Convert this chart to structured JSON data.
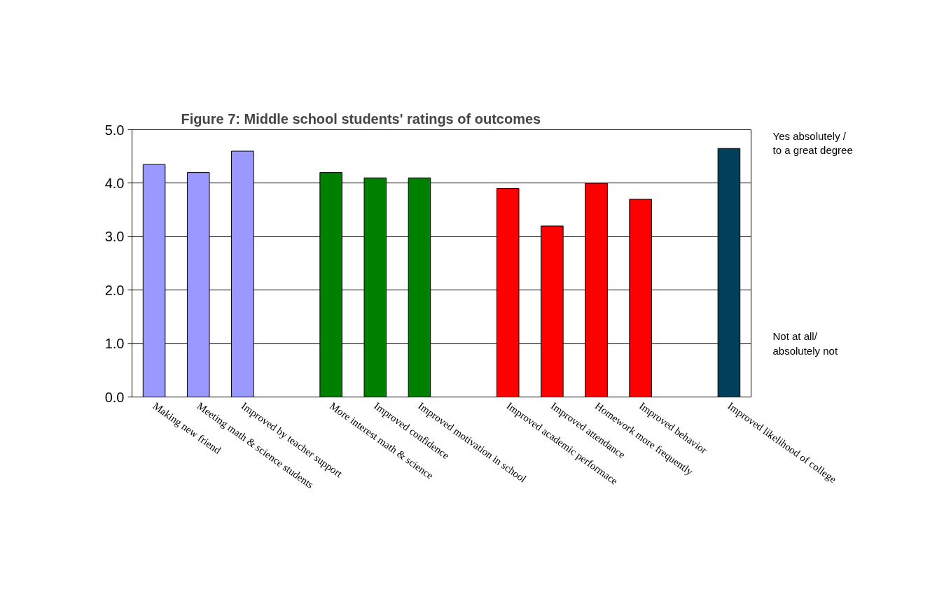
{
  "chart_data": {
    "type": "bar",
    "title": "Figure 7: Middle school students' ratings of outcomes",
    "categories": [
      "Making new friend",
      "Meeting math & science students",
      "Improved by teacher support",
      null,
      "More interest math & science",
      "Improved confidence",
      "Improved motivation in school",
      null,
      "Improved academic performace",
      "Improved attendance",
      "Homework more frequently",
      "Improved behavior",
      null,
      "Improved likelihood of college"
    ],
    "values": [
      4.35,
      4.2,
      4.6,
      null,
      4.2,
      4.1,
      4.1,
      null,
      3.9,
      3.2,
      4.0,
      3.7,
      null,
      4.65
    ],
    "colors": [
      "#9999ff",
      "#9999ff",
      "#9999ff",
      null,
      "#008000",
      "#008000",
      "#008000",
      null,
      "#ff0000",
      "#ff0000",
      "#ff0000",
      "#ff0000",
      null,
      "#00405a"
    ],
    "ylim": [
      0,
      5
    ],
    "yticks": [
      {
        "value": 0,
        "label": "0.0"
      },
      {
        "value": 1,
        "label": "1.0"
      },
      {
        "value": 2,
        "label": "2.0"
      },
      {
        "value": 3,
        "label": "3.0"
      },
      {
        "value": 4,
        "label": "4.0"
      },
      {
        "value": 5,
        "label": "5.0"
      }
    ],
    "grid": "y",
    "annotations": [
      "Yes absolutely /\nto a great degree",
      "Not at all/\nabsolutely not"
    ]
  }
}
